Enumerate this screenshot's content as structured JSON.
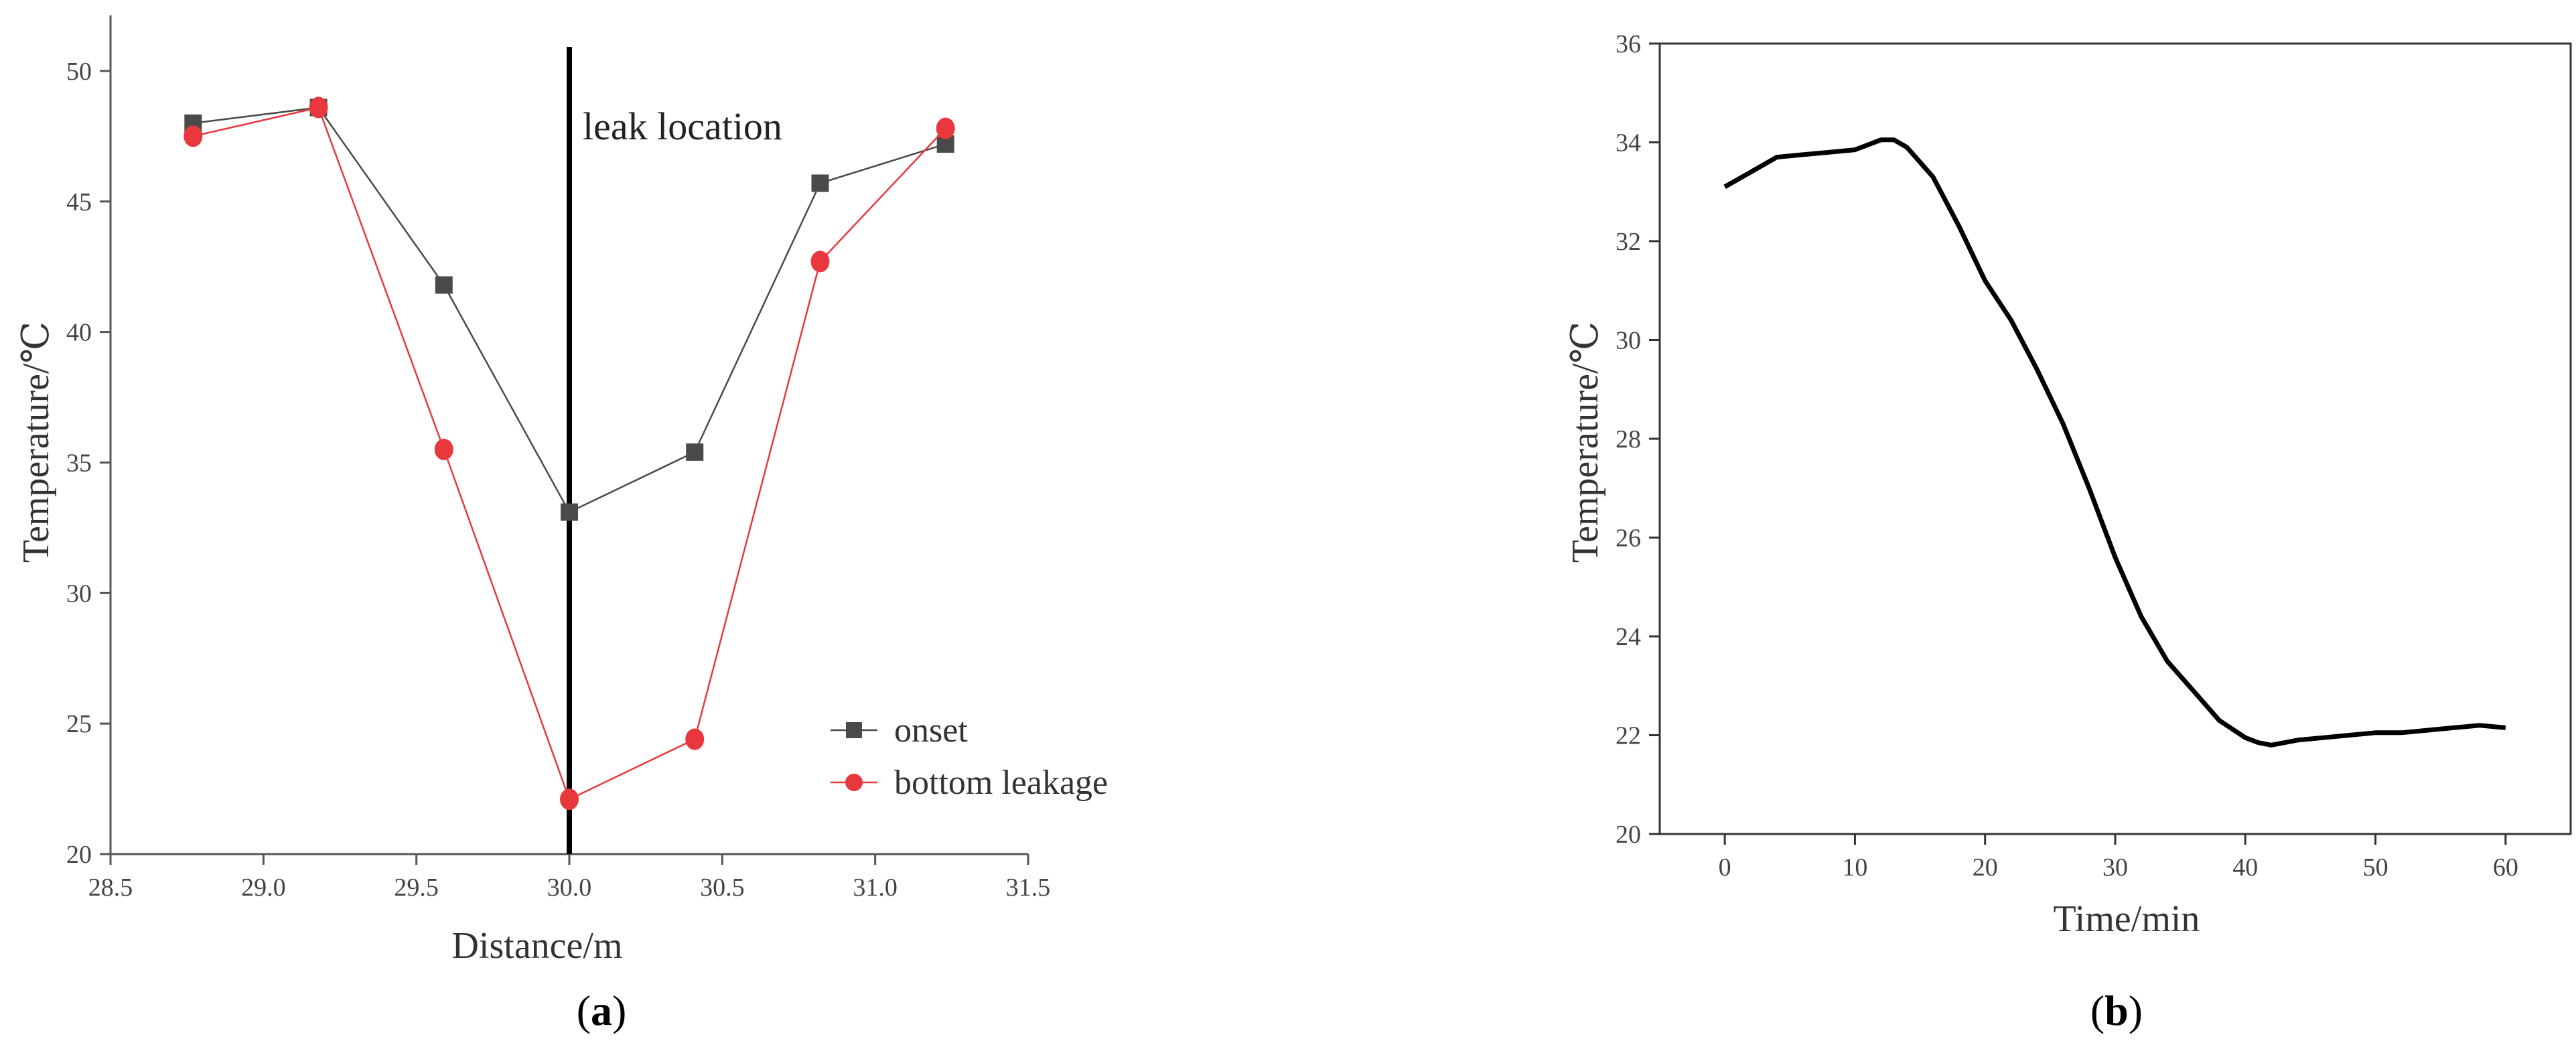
{
  "chart_data": [
    {
      "panel_label": "(a)",
      "panel_label_parts": {
        "open": "(",
        "letter": "a",
        "close": ")"
      },
      "type": "line",
      "xlabel": "Distance/m",
      "ylabel": "Temperature/℃",
      "xlim": [
        28.5,
        31.5
      ],
      "ylim": [
        20,
        52
      ],
      "x_ticks": [
        "28.5",
        "29.0",
        "29.5",
        "30.0",
        "30.5",
        "31.0",
        "31.5"
      ],
      "y_ticks": [
        "20",
        "25",
        "30",
        "35",
        "40",
        "45",
        "50"
      ],
      "grid": false,
      "legend_position": "bottom-right",
      "annotation": {
        "text": "leak location",
        "x": 30.0
      },
      "series": [
        {
          "name": "onset",
          "color": "#4a4a4a",
          "marker": "square",
          "x": [
            28.77,
            29.18,
            29.59,
            30.0,
            30.41,
            30.82,
            31.23
          ],
          "y": [
            48.0,
            48.6,
            41.8,
            33.1,
            35.4,
            45.7,
            47.2
          ]
        },
        {
          "name": "bottom leakage",
          "color": "#e8383d",
          "marker": "circle",
          "x": [
            28.77,
            29.18,
            29.59,
            30.0,
            30.41,
            30.82,
            31.23
          ],
          "y": [
            47.5,
            48.6,
            35.5,
            22.1,
            24.4,
            42.7,
            47.8
          ]
        }
      ]
    },
    {
      "panel_label": "(b)",
      "panel_label_parts": {
        "open": "(",
        "letter": "b",
        "close": ")"
      },
      "type": "line",
      "xlabel": "Time/min",
      "ylabel": "Temperature/℃",
      "xlim": [
        -5,
        65
      ],
      "ylim": [
        20,
        36
      ],
      "x_ticks": [
        "0",
        "10",
        "20",
        "30",
        "40",
        "50",
        "60"
      ],
      "y_ticks": [
        "20",
        "22",
        "24",
        "26",
        "28",
        "30",
        "32",
        "34",
        "36"
      ],
      "grid": false,
      "series": [
        {
          "color": "#000000",
          "x": [
            0,
            2,
            4,
            6,
            8,
            10,
            12,
            13,
            14,
            16,
            18,
            20,
            22,
            24,
            26,
            28,
            30,
            32,
            34,
            36,
            38,
            40,
            41,
            42,
            44,
            46,
            48,
            50,
            52,
            54,
            56,
            58,
            60
          ],
          "y": [
            33.1,
            33.4,
            33.7,
            33.75,
            33.8,
            33.85,
            34.05,
            34.05,
            33.9,
            33.3,
            32.3,
            31.2,
            30.4,
            29.4,
            28.3,
            27.0,
            25.6,
            24.4,
            23.5,
            22.9,
            22.3,
            21.95,
            21.85,
            21.8,
            21.9,
            21.95,
            22.0,
            22.05,
            22.05,
            22.1,
            22.15,
            22.2,
            22.15
          ]
        }
      ]
    }
  ]
}
